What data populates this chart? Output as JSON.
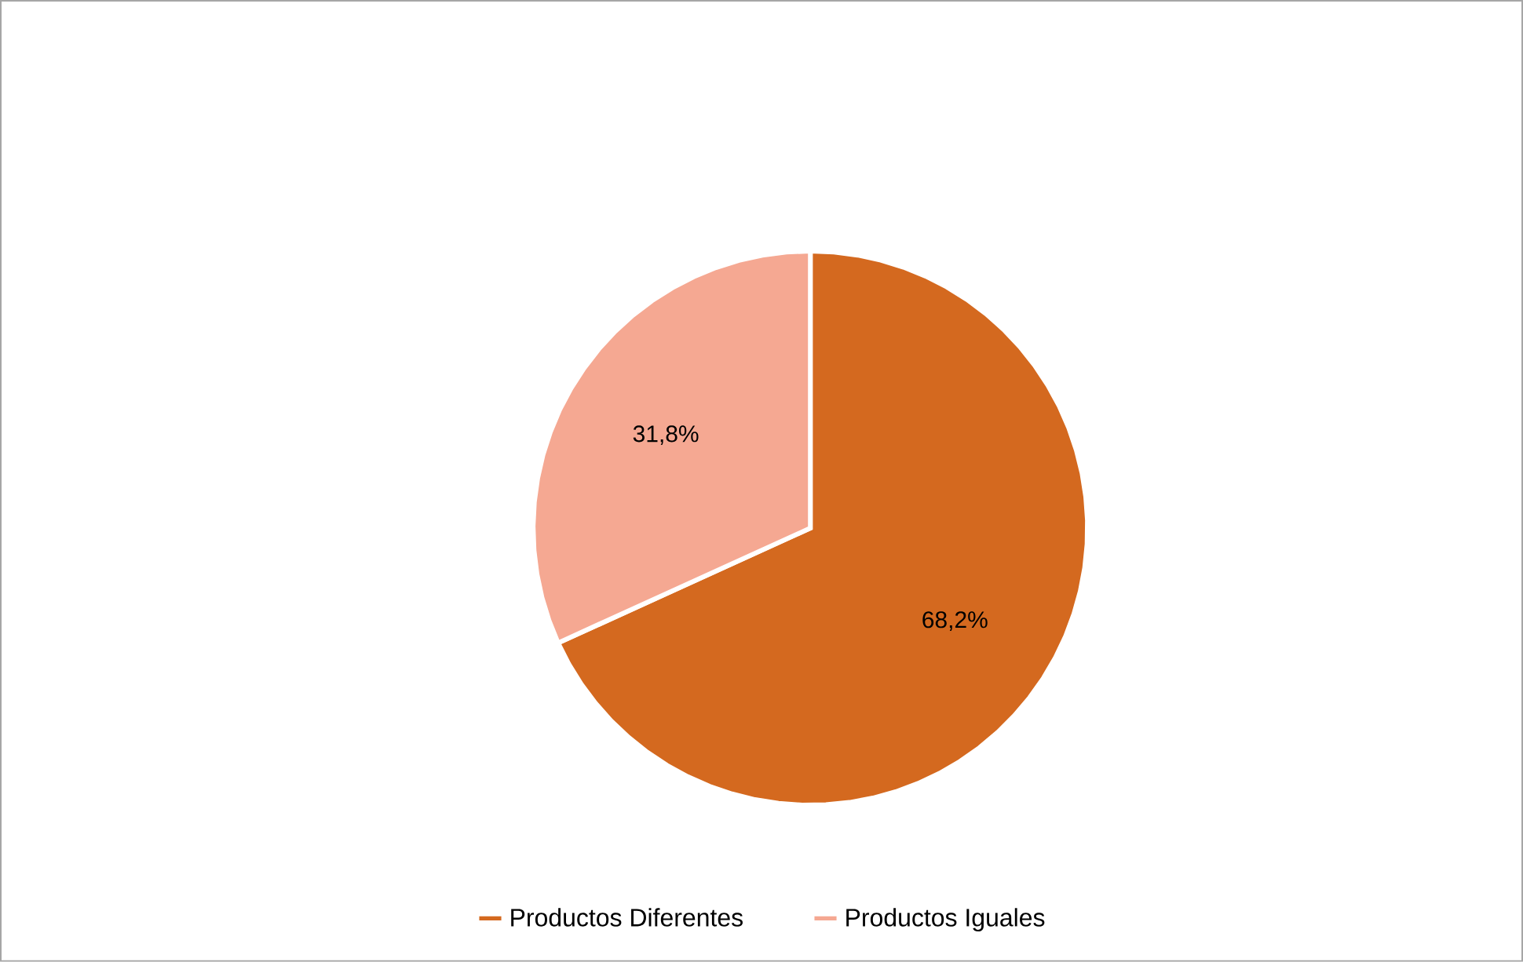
{
  "chart_data": {
    "type": "pie",
    "categories": [
      "Productos Diferentes",
      "Productos Iguales"
    ],
    "values": [
      68.2,
      31.8
    ],
    "colors": [
      "#d4691f",
      "#f5a892"
    ],
    "value_labels": [
      "68,2%",
      "31,8%"
    ],
    "legend": "bottom"
  }
}
